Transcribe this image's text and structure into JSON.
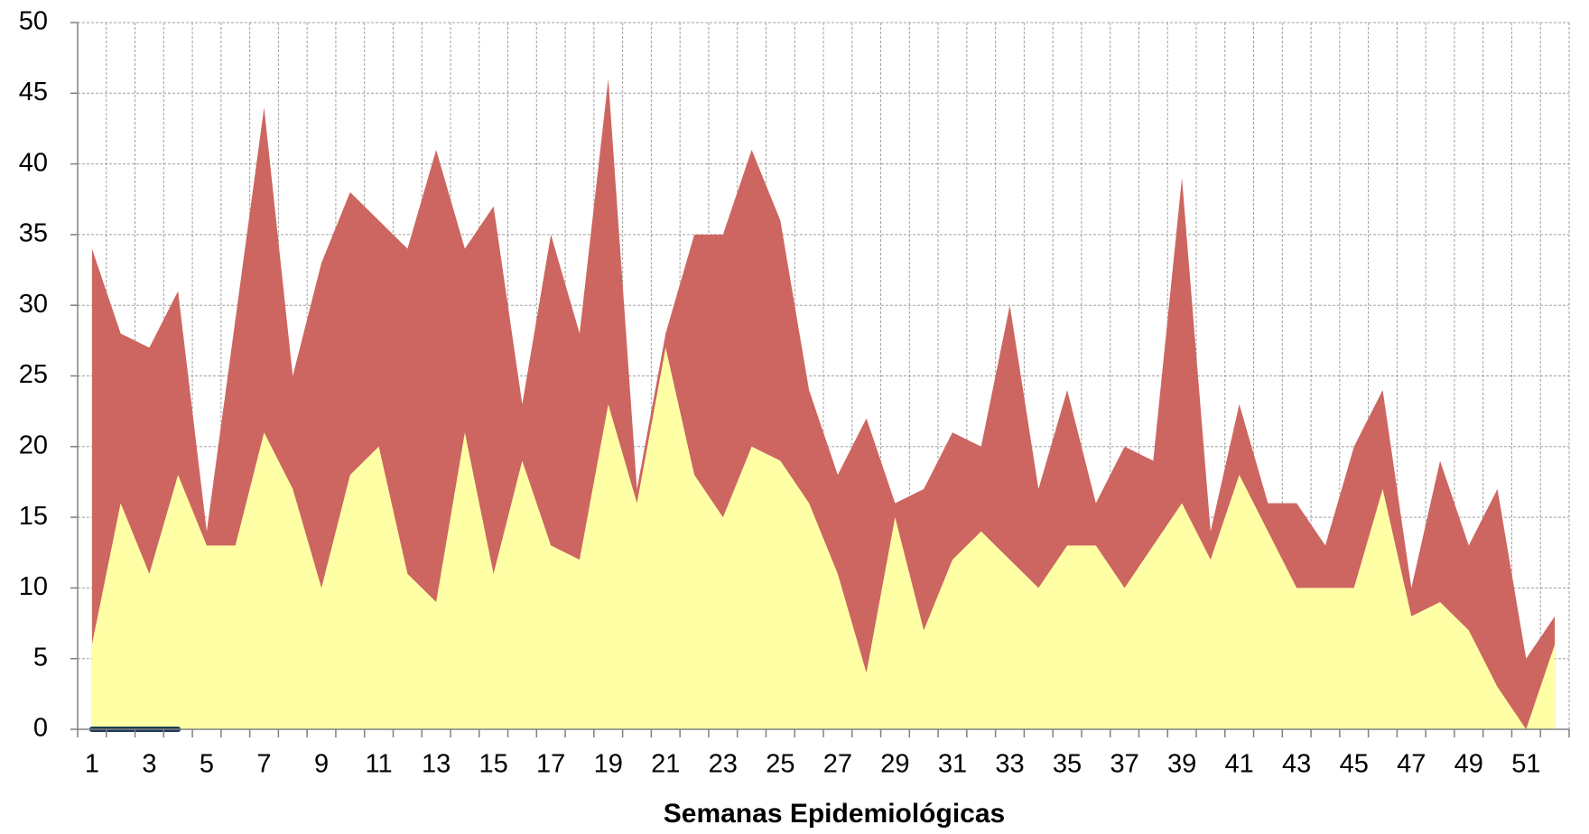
{
  "chart_data": {
    "type": "area",
    "x_label": "Semanas Epidemiológicas",
    "categories": [
      1,
      null,
      3,
      null,
      5,
      null,
      7,
      null,
      9,
      null,
      11,
      null,
      13,
      null,
      15,
      null,
      17,
      null,
      19,
      null,
      21,
      null,
      23,
      null,
      25,
      null,
      27,
      null,
      29,
      null,
      31,
      null,
      33,
      null,
      35,
      null,
      37,
      null,
      39,
      null,
      41,
      null,
      43,
      null,
      45,
      null,
      47,
      null,
      49,
      null,
      51,
      null
    ],
    "series": [
      {
        "color": "#cd6660",
        "values": [
          34,
          28,
          27,
          31,
          14,
          29,
          44,
          25,
          33,
          38,
          36,
          34,
          41,
          34,
          37,
          23,
          35,
          28,
          46,
          17,
          28,
          35,
          35,
          41,
          36,
          24,
          18,
          22,
          16,
          17,
          21,
          20,
          30,
          17,
          24,
          16,
          20,
          19,
          39,
          14,
          23,
          16,
          16,
          13,
          20,
          24,
          10,
          19,
          13,
          17,
          5,
          8
        ]
      },
      {
        "color": "#ffffa6",
        "values": [
          6,
          16,
          11,
          18,
          13,
          13,
          21,
          17,
          10,
          18,
          20,
          11,
          9,
          21,
          11,
          19,
          13,
          12,
          23,
          16,
          27,
          18,
          15,
          20,
          19,
          16,
          11,
          4,
          15,
          7,
          12,
          14,
          12,
          10,
          13,
          13,
          10,
          13,
          16,
          12,
          18,
          14,
          10,
          10,
          10,
          17,
          8,
          9,
          7,
          3,
          0,
          6
        ]
      },
      {
        "type": "line",
        "color": "#1f3a55",
        "values": [
          0,
          0,
          0,
          0,
          null,
          null,
          null,
          null,
          null,
          null,
          null,
          null,
          null,
          null,
          null,
          null,
          null,
          null,
          null,
          null,
          null,
          null,
          null,
          null,
          null,
          null,
          null,
          null,
          null,
          null,
          null,
          null,
          null,
          null,
          null,
          null,
          null,
          null,
          null,
          null,
          null,
          null,
          null,
          null,
          null,
          null,
          null,
          null,
          null,
          null,
          null,
          null
        ]
      }
    ],
    "ylim": [
      0,
      50
    ],
    "yticks": [
      0,
      5,
      10,
      15,
      20,
      25,
      30,
      35,
      40,
      45,
      50
    ],
    "grid": true
  }
}
